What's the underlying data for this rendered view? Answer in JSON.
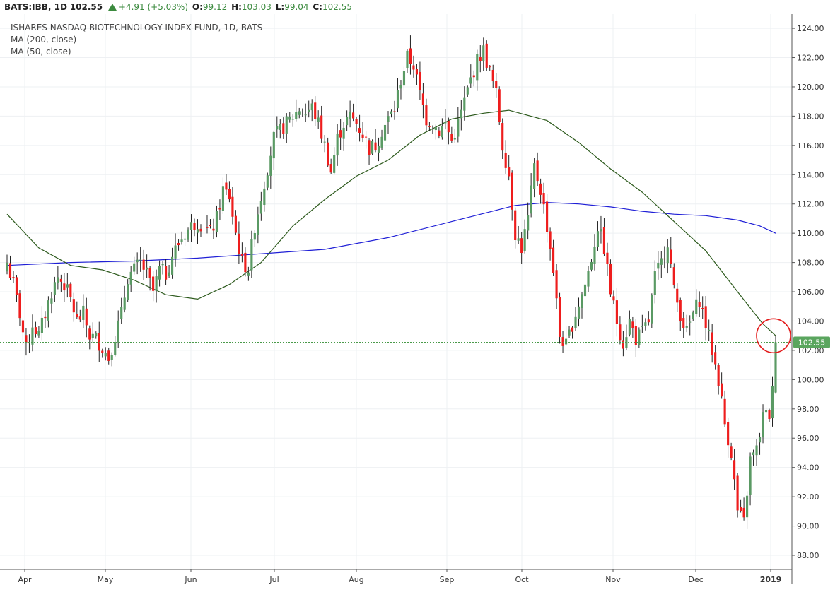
{
  "header": {
    "symbol": "BATS:IBB, 1D",
    "last": "102.55",
    "change": "+4.91 (+5.03%)",
    "open_label": "O:",
    "open": "99.12",
    "high_label": "H:",
    "high": "103.03",
    "low_label": "L:",
    "low": "99.04",
    "close_label": "C:",
    "close": "102.55"
  },
  "legend": {
    "title": "ISHARES NASDAQ BIOTECHNOLOGY INDEX FUND, 1D, BATS",
    "ma200": "MA (200, close)",
    "ma50": "MA (50, close)"
  },
  "colors": {
    "up": "#5a9a64",
    "down": "#ee1d1d",
    "ma200": "#1f1fd6",
    "ma50": "#2d5a1d",
    "grid": "#eef0f3",
    "axis_text": "#333333",
    "price_tag": "#5aa55e",
    "highlight_circle": "#e31b1b"
  },
  "chart_data": {
    "type": "candlestick",
    "title": "ISHARES NASDAQ BIOTECHNOLOGY INDEX FUND, 1D, BATS",
    "y_axis": {
      "ylim": [
        87,
        124.5
      ],
      "ticks": [
        "124.00",
        "122.00",
        "120.00",
        "118.00",
        "116.00",
        "114.00",
        "112.00",
        "110.00",
        "108.00",
        "106.00",
        "104.00",
        "102.00",
        "100.00",
        "98.00",
        "96.00",
        "94.00",
        "92.00",
        "90.00",
        "88.00"
      ],
      "position": "right"
    },
    "x_axis": {
      "month_labels": [
        "Apr",
        "May",
        "Jun",
        "Jul",
        "Aug",
        "Sep",
        "Oct",
        "Nov",
        "Dec",
        "2019"
      ]
    },
    "last_price": 102.55,
    "last_price_label": "102.55",
    "grid": true,
    "anchors": [
      [
        0,
        108.0
      ],
      [
        2,
        106.5
      ],
      [
        4,
        104.5
      ],
      [
        6,
        102.0
      ],
      [
        8,
        103.8
      ],
      [
        10,
        103.0
      ],
      [
        12,
        104.5
      ],
      [
        14,
        106.0
      ],
      [
        16,
        107.0
      ],
      [
        18,
        106.5
      ],
      [
        20,
        105.5
      ],
      [
        22,
        104.0
      ],
      [
        24,
        104.5
      ],
      [
        26,
        103.0
      ],
      [
        28,
        102.8
      ],
      [
        30,
        102.2
      ],
      [
        32,
        101.5
      ],
      [
        34,
        103.0
      ],
      [
        36,
        104.5
      ],
      [
        38,
        107.0
      ],
      [
        40,
        107.5
      ],
      [
        42,
        108.0
      ],
      [
        44,
        107.2
      ],
      [
        46,
        106.0
      ],
      [
        48,
        107.5
      ],
      [
        50,
        107.2
      ],
      [
        52,
        108.5
      ],
      [
        54,
        109.3
      ],
      [
        56,
        110.0
      ],
      [
        58,
        110.5
      ],
      [
        60,
        110.8
      ],
      [
        62,
        110.5
      ],
      [
        64,
        110.0
      ],
      [
        66,
        111.0
      ],
      [
        68,
        113.0
      ],
      [
        70,
        112.5
      ],
      [
        72,
        110.0
      ],
      [
        74,
        108.0
      ],
      [
        76,
        107.6
      ],
      [
        78,
        110.5
      ],
      [
        80,
        112.5
      ],
      [
        82,
        114.5
      ],
      [
        84,
        116.5
      ],
      [
        86,
        117.0
      ],
      [
        88,
        117.5
      ],
      [
        90,
        118.0
      ],
      [
        92,
        118.5
      ],
      [
        94,
        118.2
      ],
      [
        96,
        118.6
      ],
      [
        98,
        117.5
      ],
      [
        100,
        116.0
      ],
      [
        102,
        114.2
      ],
      [
        104,
        116.5
      ],
      [
        106,
        117.5
      ],
      [
        108,
        118.0
      ],
      [
        110,
        117.5
      ],
      [
        112,
        116.8
      ],
      [
        114,
        115.8
      ],
      [
        116,
        116.0
      ],
      [
        118,
        117.0
      ],
      [
        120,
        117.8
      ],
      [
        122,
        118.5
      ],
      [
        124,
        120.5
      ],
      [
        126,
        122.0
      ],
      [
        128,
        121.5
      ],
      [
        130,
        119.5
      ],
      [
        132,
        117.8
      ],
      [
        134,
        117.5
      ],
      [
        136,
        117.0
      ],
      [
        138,
        117.5
      ],
      [
        140,
        116.3
      ],
      [
        142,
        117.5
      ],
      [
        144,
        119.0
      ],
      [
        146,
        120.5
      ],
      [
        148,
        121.8
      ],
      [
        150,
        122.5
      ],
      [
        152,
        121.0
      ],
      [
        154,
        119.5
      ],
      [
        156,
        116.0
      ],
      [
        158,
        114.0
      ],
      [
        160,
        110.0
      ],
      [
        162,
        109.0
      ],
      [
        164,
        111.0
      ],
      [
        166,
        114.5
      ],
      [
        168,
        113.0
      ],
      [
        170,
        110.5
      ],
      [
        172,
        107.5
      ],
      [
        174,
        103.0
      ],
      [
        176,
        102.3
      ],
      [
        178,
        103.8
      ],
      [
        180,
        105.2
      ],
      [
        182,
        106.5
      ],
      [
        184,
        108.3
      ],
      [
        186,
        110.5
      ],
      [
        188,
        109.0
      ],
      [
        190,
        106.0
      ],
      [
        192,
        104.0
      ],
      [
        194,
        102.5
      ],
      [
        196,
        104.0
      ],
      [
        198,
        102.8
      ],
      [
        200,
        103.2
      ],
      [
        202,
        104.0
      ],
      [
        204,
        107.0
      ],
      [
        206,
        108.0
      ],
      [
        208,
        109.5
      ],
      [
        210,
        106.0
      ],
      [
        212,
        104.5
      ],
      [
        214,
        103.2
      ],
      [
        216,
        104.5
      ],
      [
        218,
        105.5
      ],
      [
        220,
        103.8
      ],
      [
        222,
        102.0
      ],
      [
        224,
        100.0
      ],
      [
        226,
        97.0
      ],
      [
        228,
        95.0
      ],
      [
        230,
        91.0
      ],
      [
        232,
        90.2
      ],
      [
        234,
        94.5
      ],
      [
        236,
        95.2
      ],
      [
        238,
        97.5
      ],
      [
        240,
        97.6
      ],
      [
        241,
        99.2
      ],
      [
        242,
        102.55
      ]
    ],
    "ma200": [
      [
        0,
        107.8
      ],
      [
        20,
        108.0
      ],
      [
        40,
        108.1
      ],
      [
        60,
        108.3
      ],
      [
        80,
        108.6
      ],
      [
        100,
        108.9
      ],
      [
        120,
        109.7
      ],
      [
        140,
        110.8
      ],
      [
        160,
        111.9
      ],
      [
        170,
        112.1
      ],
      [
        180,
        112.0
      ],
      [
        190,
        111.8
      ],
      [
        200,
        111.5
      ],
      [
        210,
        111.3
      ],
      [
        220,
        111.2
      ],
      [
        230,
        110.9
      ],
      [
        237,
        110.5
      ],
      [
        242,
        110.0
      ]
    ],
    "ma50": [
      [
        0,
        111.3
      ],
      [
        10,
        109.0
      ],
      [
        20,
        107.8
      ],
      [
        30,
        107.5
      ],
      [
        40,
        106.8
      ],
      [
        50,
        105.8
      ],
      [
        60,
        105.5
      ],
      [
        70,
        106.5
      ],
      [
        80,
        108.0
      ],
      [
        90,
        110.5
      ],
      [
        100,
        112.3
      ],
      [
        110,
        113.9
      ],
      [
        120,
        115.0
      ],
      [
        130,
        116.7
      ],
      [
        140,
        117.8
      ],
      [
        150,
        118.2
      ],
      [
        158,
        118.4
      ],
      [
        170,
        117.7
      ],
      [
        180,
        116.2
      ],
      [
        190,
        114.4
      ],
      [
        200,
        112.8
      ],
      [
        210,
        110.8
      ],
      [
        220,
        108.8
      ],
      [
        230,
        106.0
      ],
      [
        238,
        103.8
      ],
      [
        242,
        103.0
      ]
    ]
  }
}
